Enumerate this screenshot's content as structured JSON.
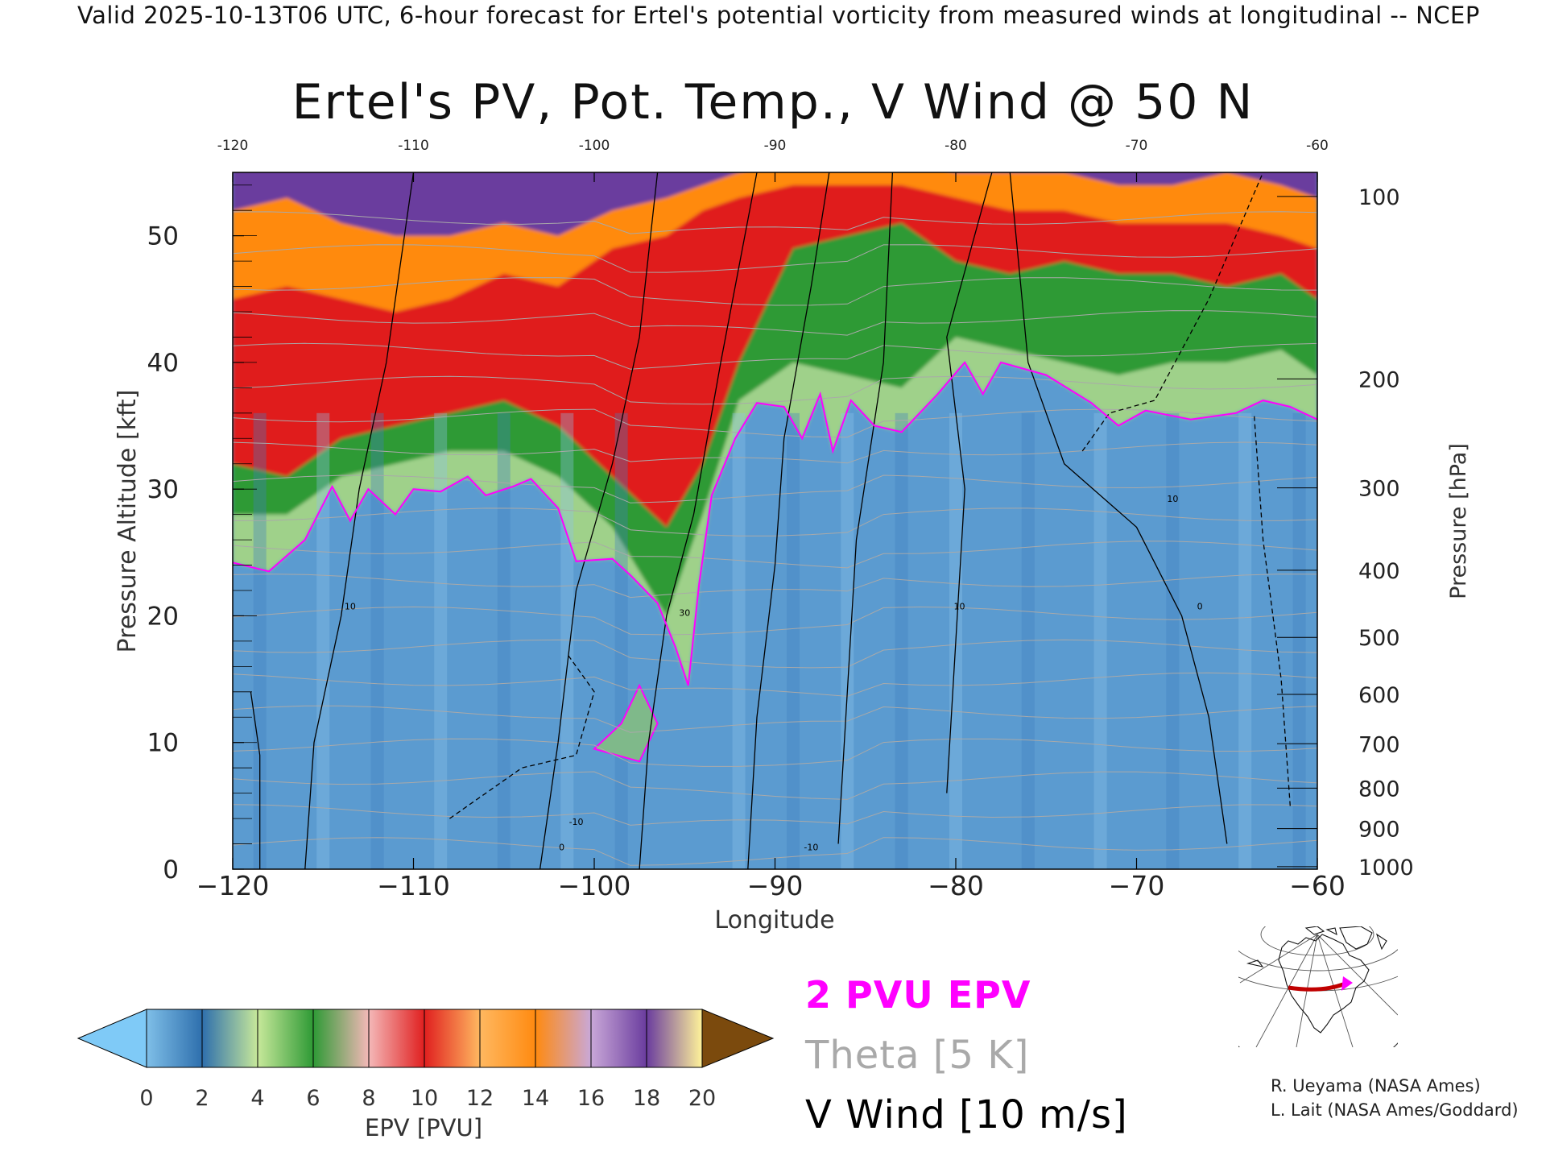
{
  "header": "Valid 2025-10-13T06 UTC, 6-hour forecast for Ertel's potential vorticity from measured winds at longitudinal -- NCEP",
  "chart_data": {
    "type": "heatmap",
    "title": "Ertel's PV, Pot. Temp., V Wind @ 50 N",
    "xlabel": "Longitude",
    "ylabel_left": "Pressure Altitude [kft]",
    "ylabel_right": "Pressure [hPa]",
    "xlim": [
      -120,
      -60
    ],
    "ylim": [
      0,
      55
    ],
    "x_ticks": [
      "−120",
      "−110",
      "−100",
      "−90",
      "−80",
      "−70",
      "−60"
    ],
    "x_ticks_top": [
      "-120",
      "-110",
      "-100",
      "-90",
      "-80",
      "-70",
      "-60"
    ],
    "y_ticks": [
      "0",
      "10",
      "20",
      "30",
      "40",
      "50"
    ],
    "pressure_ticks": [
      {
        "hpa": 1000,
        "kft": 0.2
      },
      {
        "hpa": 900,
        "kft": 3.2
      },
      {
        "hpa": 800,
        "kft": 6.4
      },
      {
        "hpa": 700,
        "kft": 9.9
      },
      {
        "hpa": 600,
        "kft": 13.8
      },
      {
        "hpa": 500,
        "kft": 18.3
      },
      {
        "hpa": 400,
        "kft": 23.6
      },
      {
        "hpa": 300,
        "kft": 30.1
      },
      {
        "hpa": 200,
        "kft": 38.7
      },
      {
        "hpa": 100,
        "kft": 53.1
      }
    ],
    "tropopause_2pvu_kft": [
      {
        "lon": -120,
        "alt": 24.2
      },
      {
        "lon": -118,
        "alt": 23.5
      },
      {
        "lon": -116,
        "alt": 26
      },
      {
        "lon": -114.5,
        "alt": 30.2
      },
      {
        "lon": -113.5,
        "alt": 27.5
      },
      {
        "lon": -112.5,
        "alt": 30
      },
      {
        "lon": -111,
        "alt": 28
      },
      {
        "lon": -110,
        "alt": 30
      },
      {
        "lon": -108.5,
        "alt": 29.8
      },
      {
        "lon": -107,
        "alt": 31
      },
      {
        "lon": -106,
        "alt": 29.5
      },
      {
        "lon": -104.5,
        "alt": 30.2
      },
      {
        "lon": -103.5,
        "alt": 30.8
      },
      {
        "lon": -102,
        "alt": 28.5
      },
      {
        "lon": -101,
        "alt": 24.3
      },
      {
        "lon": -99,
        "alt": 24.5
      },
      {
        "lon": -98,
        "alt": 23.2
      },
      {
        "lon": -96.5,
        "alt": 21
      },
      {
        "lon": -95.5,
        "alt": 17.5
      },
      {
        "lon": -94.8,
        "alt": 14.5
      },
      {
        "lon": -94.2,
        "alt": 22.5
      },
      {
        "lon": -93.5,
        "alt": 29.5
      },
      {
        "lon": -92.2,
        "alt": 34
      },
      {
        "lon": -91,
        "alt": 36.8
      },
      {
        "lon": -89.5,
        "alt": 36.5
      },
      {
        "lon": -88.5,
        "alt": 34
      },
      {
        "lon": -87.5,
        "alt": 37.5
      },
      {
        "lon": -86.8,
        "alt": 33
      },
      {
        "lon": -85.8,
        "alt": 37
      },
      {
        "lon": -84.5,
        "alt": 35
      },
      {
        "lon": -83,
        "alt": 34.5
      },
      {
        "lon": -81,
        "alt": 37.5
      },
      {
        "lon": -79.5,
        "alt": 40
      },
      {
        "lon": -78.5,
        "alt": 37.5
      },
      {
        "lon": -77.5,
        "alt": 40
      },
      {
        "lon": -75,
        "alt": 39
      },
      {
        "lon": -72.5,
        "alt": 36.8
      },
      {
        "lon": -71,
        "alt": 35
      },
      {
        "lon": -69.5,
        "alt": 36.2
      },
      {
        "lon": -67,
        "alt": 35.5
      },
      {
        "lon": -64.5,
        "alt": 36
      },
      {
        "lon": -63,
        "alt": 37
      },
      {
        "lon": -61.5,
        "alt": 36.5
      },
      {
        "lon": -60,
        "alt": 35.5
      }
    ],
    "pv_upper_levels_kft": [
      {
        "lon": -120,
        "ge4": 28,
        "ge8": 32,
        "ge12": 45,
        "ge14": 52
      },
      {
        "lon": -117,
        "ge4": 28,
        "ge8": 31,
        "ge12": 46,
        "ge14": 53
      },
      {
        "lon": -114,
        "ge4": 31,
        "ge8": 34,
        "ge12": 45,
        "ge14": 51
      },
      {
        "lon": -111,
        "ge4": 32,
        "ge8": 35,
        "ge12": 44,
        "ge14": 50
      },
      {
        "lon": -108,
        "ge4": 33,
        "ge8": 36,
        "ge12": 45,
        "ge14": 50
      },
      {
        "lon": -105,
        "ge4": 33,
        "ge8": 37,
        "ge12": 47,
        "ge14": 51
      },
      {
        "lon": -102,
        "ge4": 31,
        "ge8": 35,
        "ge12": 46,
        "ge14": 50
      },
      {
        "lon": -99,
        "ge4": 27,
        "ge8": 31,
        "ge12": 49,
        "ge14": 52
      },
      {
        "lon": -96,
        "ge4": 20,
        "ge8": 27,
        "ge12": 50,
        "ge14": 53
      },
      {
        "lon": -94,
        "ge4": 28,
        "ge8": 32,
        "ge12": 52,
        "ge14": 54
      },
      {
        "lon": -92,
        "ge4": 37,
        "ge8": 40,
        "ge12": 53,
        "ge14": 55
      },
      {
        "lon": -89,
        "ge4": 40,
        "ge8": 49,
        "ge12": 54,
        "ge14": 56
      },
      {
        "lon": -86,
        "ge4": 39,
        "ge8": 50,
        "ge12": 54,
        "ge14": 56
      },
      {
        "lon": -83,
        "ge4": 38,
        "ge8": 51,
        "ge12": 54,
        "ge14": 56
      },
      {
        "lon": -80,
        "ge4": 42,
        "ge8": 48,
        "ge12": 53,
        "ge14": 55
      },
      {
        "lon": -77,
        "ge4": 41,
        "ge8": 47,
        "ge12": 52,
        "ge14": 55
      },
      {
        "lon": -74,
        "ge4": 40,
        "ge8": 48,
        "ge12": 52,
        "ge14": 55
      },
      {
        "lon": -71,
        "ge4": 39,
        "ge8": 47,
        "ge12": 51,
        "ge14": 54
      },
      {
        "lon": -68,
        "ge4": 40,
        "ge8": 47,
        "ge12": 51,
        "ge14": 54
      },
      {
        "lon": -65,
        "ge4": 40,
        "ge8": 46,
        "ge12": 51,
        "ge14": 55
      },
      {
        "lon": -62,
        "ge4": 41,
        "ge8": 47,
        "ge12": 50,
        "ge14": 54
      },
      {
        "lon": -60,
        "ge4": 39,
        "ge8": 45,
        "ge12": 49,
        "ge14": 53
      }
    ],
    "colorbar": {
      "label": "EPV [PVU]",
      "ticks": [
        "0",
        "2",
        "4",
        "6",
        "8",
        "10",
        "12",
        "14",
        "16",
        "18",
        "20"
      ],
      "colors": [
        "#7fbfe8",
        "#2e6fad",
        "#c7e89a",
        "#2e9a35",
        "#f4b8b8",
        "#e01f1f",
        "#ffb860",
        "#ff8a10",
        "#c9a8d8",
        "#6a3c9e",
        "#fff39a",
        "#7b4a0d"
      ],
      "under_color": "#7fcaf7",
      "over_color": "#7b4a0d"
    },
    "legend": [
      {
        "label": "2 PVU EPV",
        "color": "#ff00ff"
      },
      {
        "label": "Theta [5 K]",
        "color": "#a9a9a9"
      },
      {
        "label": "V Wind [10 m/s]",
        "color": "#000000"
      }
    ],
    "wind_contour_labels": [
      "-10",
      "0",
      "10",
      "30"
    ]
  },
  "credits": [
    "R. Ueyama (NASA Ames)",
    "L. Lait (NASA Ames/Goddard)"
  ],
  "colors": {
    "tropopause": "#ff00ff",
    "theta": "#a9a9a9",
    "wind": "#000000",
    "map_track": "#c00000"
  }
}
